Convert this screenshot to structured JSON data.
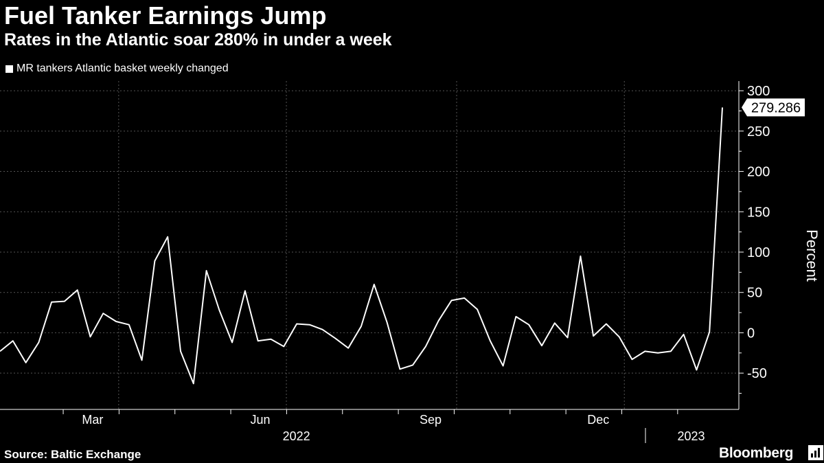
{
  "chart_data": {
    "type": "line",
    "title": "Fuel Tanker Earnings Jump",
    "subtitle": "Rates in the Atlantic soar 280% in under a week",
    "ylabel": "Percent",
    "ylim": [
      -95,
      312
    ],
    "yticks": [
      300,
      250,
      200,
      150,
      100,
      50,
      0,
      -50
    ],
    "ytick_labels": [
      "300",
      "250",
      "200",
      "150",
      "100",
      "50",
      "0",
      "-50"
    ],
    "xticks": [
      {
        "label": "Mar",
        "week": 9.2
      },
      {
        "label": "Jun",
        "week": 22.2
      },
      {
        "label": "Sep",
        "week": 35.4
      },
      {
        "label": "Dec",
        "week": 48.4
      }
    ],
    "year_labels": [
      {
        "label": "2022",
        "week": 25
      },
      {
        "label": "2023",
        "week": 55.6
      }
    ],
    "legend_position": "top-left",
    "grid": true,
    "series": [
      {
        "name": "MR tankers Atlantic basket weekly changed",
        "color": "#ffffff",
        "values": [
          -23,
          -10,
          -37,
          -12,
          38,
          39,
          53,
          -5,
          24,
          14,
          10,
          -34,
          89,
          119,
          -23,
          -63,
          77,
          28,
          -12,
          52,
          -10,
          -8,
          -17,
          11,
          10,
          4,
          -7,
          -19,
          8,
          60,
          13,
          -45,
          -40,
          -17,
          15,
          40,
          43,
          29,
          -10,
          -41,
          20,
          10,
          -16,
          12,
          -6,
          95,
          -4,
          11,
          -5,
          -33,
          -23,
          -25,
          -23,
          -2,
          -46,
          1,
          279.286
        ]
      }
    ],
    "last_value_label": "279.286",
    "source": "Source: Baltic Exchange"
  },
  "brand": "Bloomberg"
}
